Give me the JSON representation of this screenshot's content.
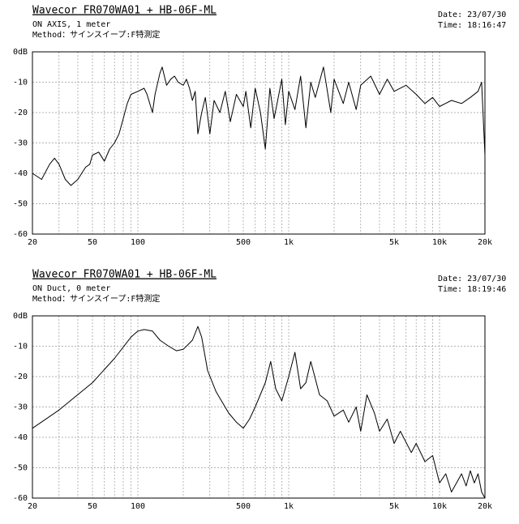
{
  "chart_data": [
    {
      "type": "line",
      "title": "Wavecor FR070WA01 + HB-06F-ML",
      "subtitle": "ON AXIS, 1 meter",
      "method": "Method：サインスイープ:F特測定",
      "date": "Date: 23/07/30",
      "time": "Time: 18:16:47",
      "xscale": "log",
      "grid": true,
      "color": "#000000",
      "xlim": [
        20,
        20000
      ],
      "ylim": [
        -60,
        0
      ],
      "xticks": [
        20,
        50,
        100,
        500,
        {
          "value": 1000,
          "label": "1k"
        },
        {
          "value": 5000,
          "label": "5k"
        },
        {
          "value": 10000,
          "label": "10k"
        },
        {
          "value": 20000,
          "label": "20k"
        }
      ],
      "xgrid": [
        30,
        40,
        60,
        70,
        80,
        90,
        200,
        300,
        400,
        600,
        700,
        800,
        900,
        2000,
        3000,
        4000,
        6000,
        7000,
        8000,
        9000
      ],
      "yticks": [
        {
          "value": 0,
          "label": "0dB"
        },
        -10,
        -20,
        -30,
        -40,
        -50,
        -60
      ],
      "x": [
        20,
        23,
        26,
        28,
        30,
        33,
        36,
        40,
        45,
        48,
        50,
        55,
        60,
        65,
        70,
        75,
        80,
        85,
        90,
        100,
        110,
        115,
        125,
        130,
        140,
        145,
        155,
        165,
        175,
        185,
        200,
        210,
        220,
        230,
        240,
        250,
        265,
        280,
        300,
        320,
        350,
        380,
        410,
        450,
        500,
        520,
        560,
        600,
        650,
        700,
        750,
        800,
        900,
        950,
        1000,
        1100,
        1200,
        1300,
        1400,
        1500,
        1700,
        1900,
        2000,
        2300,
        2500,
        2800,
        3000,
        3500,
        4000,
        4500,
        5000,
        6000,
        7000,
        8000,
        9000,
        10000,
        12000,
        14000,
        16000,
        18000,
        19000,
        20000
      ],
      "values": [
        -40,
        -42,
        -37,
        -35,
        -37,
        -42,
        -44,
        -42,
        -38,
        -37,
        -34,
        -33,
        -36,
        -32,
        -30,
        -27,
        -22,
        -17,
        -14,
        -13,
        -12,
        -14,
        -20,
        -14,
        -7,
        -5,
        -11,
        -9,
        -8,
        -10,
        -11,
        -9,
        -12,
        -16,
        -13,
        -27,
        -20,
        -15,
        -27,
        -16,
        -20,
        -13,
        -23,
        -14,
        -18,
        -13,
        -25,
        -12,
        -20,
        -32,
        -12,
        -22,
        -9,
        -24,
        -13,
        -19,
        -8,
        -25,
        -10,
        -15,
        -5,
        -20,
        -9,
        -17,
        -10,
        -19,
        -11,
        -8,
        -14,
        -9,
        -13,
        -11,
        -14,
        -17,
        -15,
        -18,
        -16,
        -17,
        -15,
        -13,
        -10,
        -34
      ]
    },
    {
      "type": "line",
      "title": "Wavecor FR070WA01 + HB-06F-ML",
      "subtitle": "ON Duct, 0 meter",
      "method": "Method：サインスイープ:F特測定",
      "date": "Date: 23/07/30",
      "time": "Time: 18:19:46",
      "xscale": "log",
      "grid": true,
      "color": "#000000",
      "xlim": [
        20,
        20000
      ],
      "ylim": [
        -60,
        0
      ],
      "xticks": [
        20,
        50,
        100,
        500,
        {
          "value": 1000,
          "label": "1k"
        },
        {
          "value": 5000,
          "label": "5k"
        },
        {
          "value": 10000,
          "label": "10k"
        },
        {
          "value": 20000,
          "label": "20k"
        }
      ],
      "xgrid": [
        30,
        40,
        60,
        70,
        80,
        90,
        200,
        300,
        400,
        600,
        700,
        800,
        900,
        2000,
        3000,
        4000,
        6000,
        7000,
        8000,
        9000
      ],
      "yticks": [
        {
          "value": 0,
          "label": "0dB"
        },
        -10,
        -20,
        -30,
        -40,
        -50,
        -60
      ],
      "x": [
        20,
        30,
        50,
        70,
        90,
        100,
        110,
        125,
        140,
        160,
        180,
        200,
        230,
        250,
        265,
        290,
        330,
        400,
        450,
        500,
        550,
        600,
        700,
        760,
        820,
        900,
        1000,
        1100,
        1200,
        1300,
        1400,
        1600,
        1800,
        2000,
        2300,
        2500,
        2800,
        3000,
        3300,
        3700,
        4000,
        4500,
        5000,
        5500,
        6500,
        7000,
        8000,
        9000,
        10000,
        11000,
        12000,
        14000,
        15000,
        16000,
        17000,
        18000,
        19000,
        20000
      ],
      "values": [
        -37,
        -31,
        -22,
        -14,
        -7,
        -5,
        -4.5,
        -5,
        -8,
        -10,
        -11.5,
        -11,
        -8,
        -3.5,
        -7,
        -18,
        -25,
        -32,
        -35,
        -37,
        -34,
        -30,
        -22,
        -15,
        -24,
        -28,
        -20,
        -12,
        -24,
        -22,
        -15,
        -26,
        -28,
        -33,
        -31,
        -35,
        -30,
        -38,
        -26,
        -32,
        -38,
        -34,
        -42,
        -38,
        -45,
        -42,
        -48,
        -46,
        -55,
        -52,
        -58,
        -52,
        -56,
        -51,
        -55,
        -52,
        -58,
        -60
      ]
    }
  ]
}
